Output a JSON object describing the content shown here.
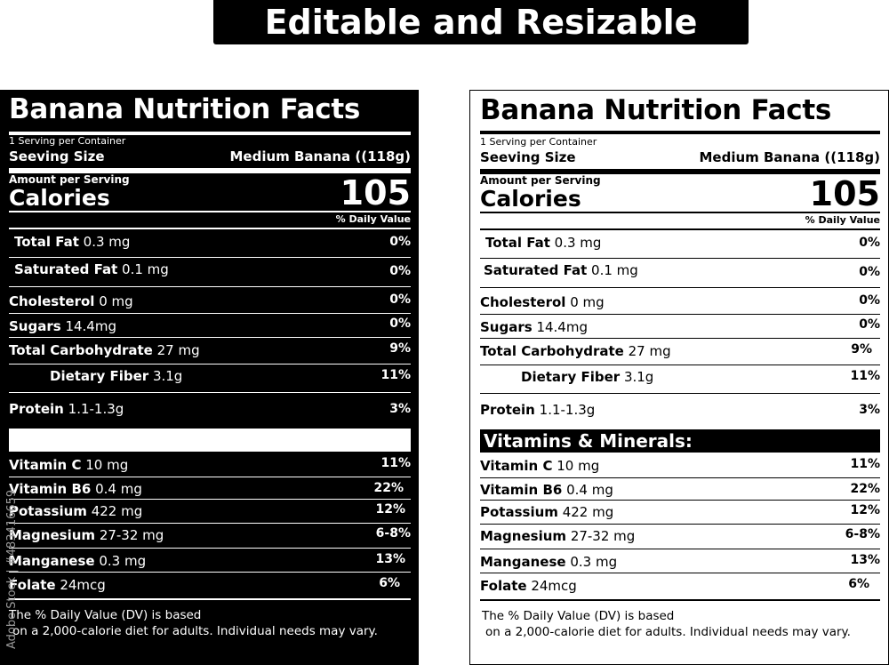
{
  "banner": "Editable and Resizable",
  "label": {
    "title": "Banana Nutrition Facts",
    "servings_per_container": "1 Serving per Container",
    "serving_size_label": "Seeving Size",
    "serving_size_value": "Medium Banana ((118g)",
    "amount_per_serving": "Amount per Serving",
    "calories_label": "Calories",
    "calories_value": "105",
    "daily_value_header": "% Daily Value",
    "nutrients": [
      {
        "name": "Total Fat",
        "amount": "0.3 mg",
        "dv": "0%"
      },
      {
        "name": "Saturated Fat",
        "amount": "0.1 mg",
        "dv": "0%"
      },
      {
        "name": "Cholesterol",
        "amount": "0 mg",
        "dv": "0%"
      },
      {
        "name": "Sugars",
        "amount": "14.4mg",
        "dv": "0%"
      },
      {
        "name": "Total Carbohydrate",
        "amount": "27 mg",
        "dv": "9%"
      },
      {
        "name": "Dietary Fiber",
        "amount": "3.1g",
        "dv": "11%"
      },
      {
        "name": "Protein",
        "amount": "1.1-1.3g",
        "dv": "3%"
      }
    ],
    "vitamins_header": "Vitamins & Minerals:",
    "vitamins": [
      {
        "name": "Vitamin C",
        "amount": "10 mg",
        "dv": "11%"
      },
      {
        "name": "Vitamin B6",
        "amount": "0.4 mg",
        "dv": "22%"
      },
      {
        "name": "Potassium",
        "amount": "422 mg",
        "dv": "12%"
      },
      {
        "name": "Magnesium",
        "amount": "27-32 mg",
        "dv": "6-8%"
      },
      {
        "name": "Manganese",
        "amount": "0.3 mg",
        "dv": "13%"
      },
      {
        "name": "Folate",
        "amount": "24mcg",
        "dv": "6%"
      }
    ],
    "footnote_line1": "The % Daily Value (DV) is based",
    "footnote_line2": "on a 2,000-calorie diet for adults. Individual needs may vary."
  },
  "watermark": "Adobe Stock | #483416659"
}
